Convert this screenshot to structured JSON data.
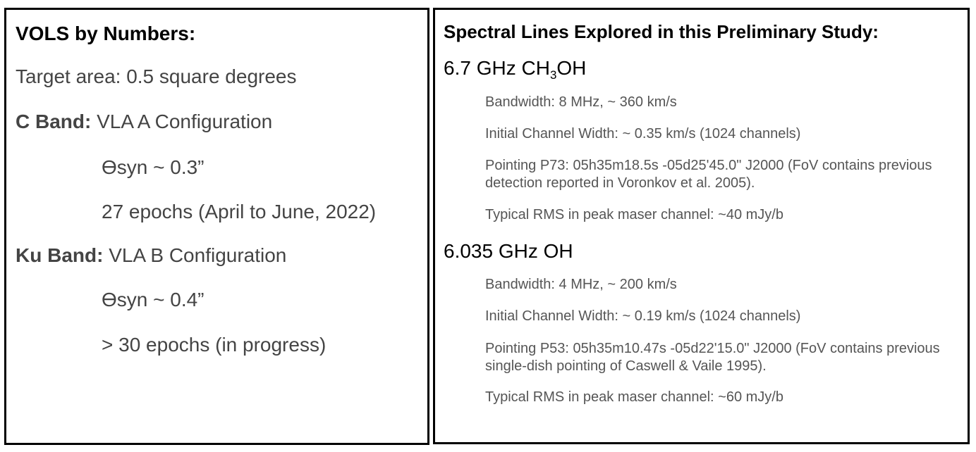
{
  "left": {
    "heading": "VOLS by Numbers:",
    "target_area": "Target area: 0.5 square degrees",
    "c_band": {
      "label": "C Band:",
      "config": " VLA A Configuration",
      "resolution": "ϴsyn ~ 0.3”",
      "epochs": "27 epochs (April to June, 2022)"
    },
    "ku_band": {
      "label": "Ku Band:",
      "config": " VLA B Configuration",
      "resolution": "ϴsyn ~ 0.4”",
      "epochs": "> 30 epochs (in progress)"
    }
  },
  "right": {
    "heading": "Spectral Lines Explored in this Preliminary Study:",
    "line1": {
      "freq": "6.7 GHz CH",
      "sub": "3",
      "suffix": "OH",
      "bandwidth": "Bandwidth: 8 MHz, ~ 360 km/s",
      "channel_width": "Initial Channel Width: ~ 0.35 km/s (1024 channels)",
      "pointing": "Pointing P73: 05h35m18.5s -05d25'45.0\" J2000 (FoV contains previous detection reported in Voronkov et al. 2005).",
      "rms": "Typical RMS in peak maser channel: ~40 mJy/b"
    },
    "line2": {
      "title": "6.035 GHz OH",
      "bandwidth": "Bandwidth: 4 MHz, ~ 200 km/s",
      "channel_width": "Initial Channel Width: ~ 0.19 km/s (1024 channels)",
      "pointing": "Pointing P53: 05h35m10.47s -05d22'15.0\" J2000 (FoV contains previous single-dish pointing of Caswell & Vaile 1995).",
      "rms": "Typical RMS in peak maser channel: ~60 mJy/b"
    }
  }
}
